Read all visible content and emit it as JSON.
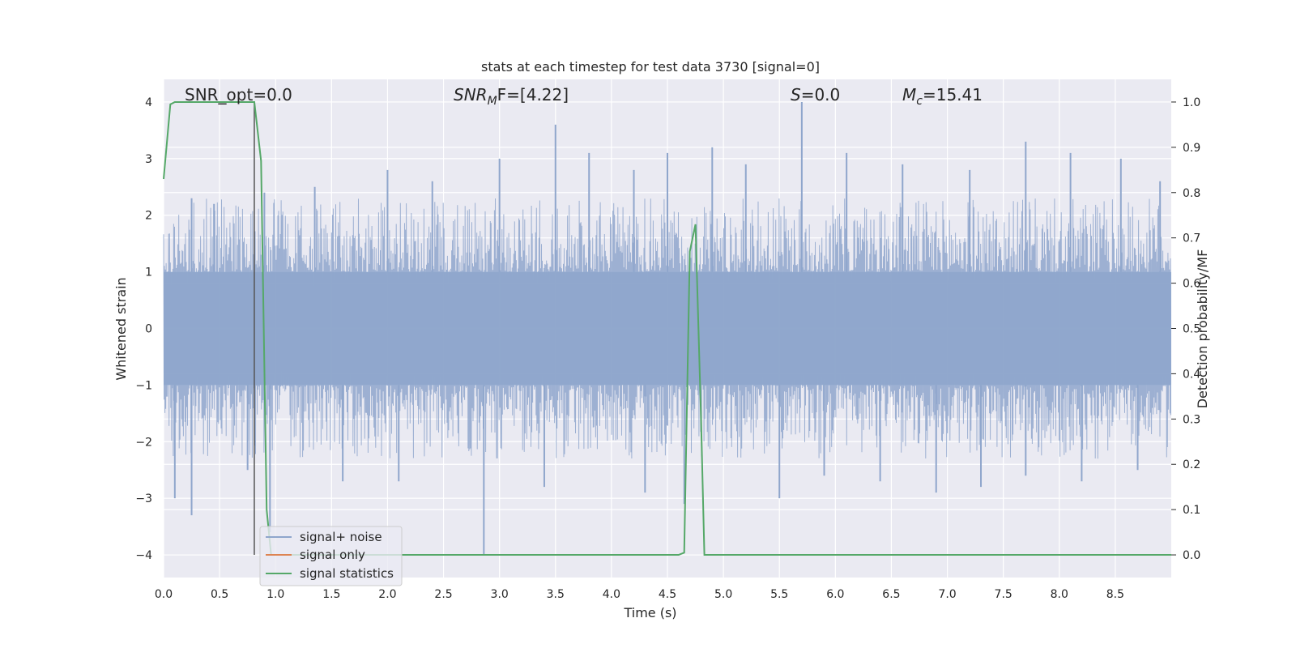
{
  "chart_data": {
    "type": "line",
    "title": "stats at each timestep for test data 3730 [signal=0]",
    "xlabel": "Time (s)",
    "ylabel": "Whitened strain",
    "y2label": "Detection probability/MF",
    "xlim": [
      0,
      9.0
    ],
    "ylim": [
      -4.4,
      4.4
    ],
    "y2lim": [
      -0.05,
      1.05
    ],
    "xticks": [
      "0.0",
      "0.5",
      "1.0",
      "1.5",
      "2.0",
      "2.5",
      "3.0",
      "3.5",
      "4.0",
      "4.5",
      "5.0",
      "5.5",
      "6.0",
      "6.5",
      "7.0",
      "7.5",
      "8.0",
      "8.5"
    ],
    "yticks": [
      "4",
      "3",
      "2",
      "1",
      "0",
      "−1",
      "−2",
      "−3",
      "−4"
    ],
    "y2ticks": [
      "1.0",
      "0.9",
      "0.8",
      "0.7",
      "0.6",
      "0.5",
      "0.4",
      "0.3",
      "0.2",
      "0.1",
      "0.0"
    ],
    "grid": true,
    "legend_position": "lower-left",
    "annotations": {
      "snr_opt": "SNR_opt=0.0",
      "snr_mf_main": "SNR",
      "snr_mf_sub": "M",
      "snr_mf_rest": "F=[4.22]",
      "s_main": "S",
      "s_rest": "=0.0",
      "mc_main": "M",
      "mc_sub": "c",
      "mc_rest": "=15.41"
    },
    "marker_line_x": 0.81,
    "series": [
      {
        "name": "signal+ noise",
        "color": "#8fa6cc",
        "description_values": "dense noise, |strain| roughly 1-2.5, spikes up to 4.0",
        "spikes_up": [
          [
            0.25,
            2.3
          ],
          [
            0.45,
            2.2
          ],
          [
            0.9,
            2.4
          ],
          [
            1.35,
            2.5
          ],
          [
            2.0,
            2.8
          ],
          [
            2.4,
            2.6
          ],
          [
            3.0,
            3.0
          ],
          [
            3.5,
            3.6
          ],
          [
            3.8,
            3.1
          ],
          [
            4.2,
            2.8
          ],
          [
            4.5,
            3.1
          ],
          [
            4.9,
            3.2
          ],
          [
            5.2,
            2.9
          ],
          [
            5.7,
            4.0
          ],
          [
            6.1,
            3.1
          ],
          [
            6.6,
            2.9
          ],
          [
            7.2,
            2.8
          ],
          [
            7.7,
            3.3
          ],
          [
            8.1,
            3.1
          ],
          [
            8.55,
            3.0
          ],
          [
            8.9,
            2.6
          ]
        ],
        "spikes_down": [
          [
            0.1,
            -3.0
          ],
          [
            0.25,
            -3.3
          ],
          [
            0.75,
            -2.5
          ],
          [
            0.95,
            -3.6
          ],
          [
            1.6,
            -2.7
          ],
          [
            2.1,
            -2.7
          ],
          [
            2.86,
            -4.0
          ],
          [
            3.4,
            -2.8
          ],
          [
            4.3,
            -2.9
          ],
          [
            4.65,
            -3.1
          ],
          [
            5.5,
            -3.0
          ],
          [
            5.9,
            -2.6
          ],
          [
            6.4,
            -2.7
          ],
          [
            6.9,
            -2.9
          ],
          [
            7.3,
            -2.8
          ],
          [
            7.7,
            -2.6
          ],
          [
            8.2,
            -2.7
          ],
          [
            8.7,
            -2.5
          ]
        ]
      },
      {
        "name": "signal only",
        "color": "#dd8452",
        "x": [],
        "y": []
      },
      {
        "name": "signal statistics",
        "color": "#55a868",
        "axis": "right",
        "x": [
          0.0,
          0.06,
          0.1,
          0.2,
          0.81,
          0.87,
          0.92,
          0.96,
          1.0,
          4.6,
          4.65,
          4.7,
          4.75,
          4.8,
          4.83,
          4.87,
          9.0
        ],
        "y": [
          0.83,
          0.995,
          1.0,
          1.0,
          1.0,
          0.87,
          0.1,
          0.0,
          0.0,
          0.0,
          0.005,
          0.67,
          0.73,
          0.3,
          0.0,
          0.0,
          0.0
        ]
      }
    ]
  }
}
